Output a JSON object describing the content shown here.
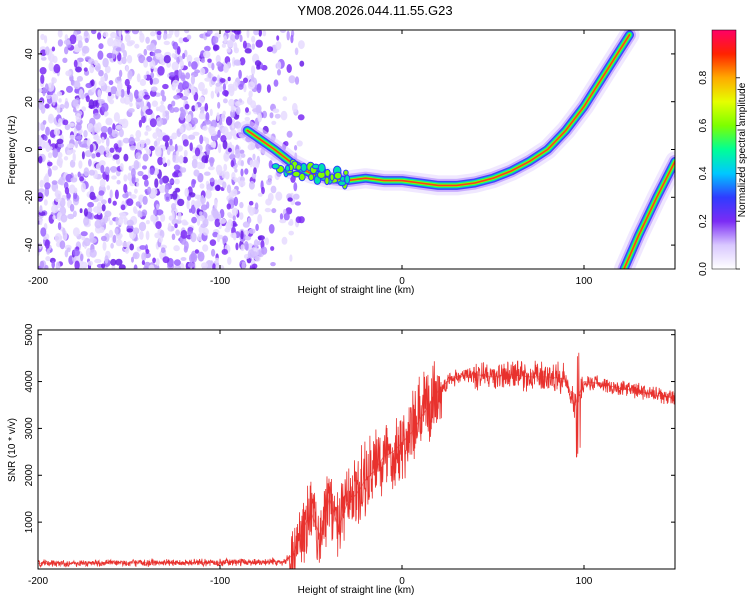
{
  "figure": {
    "title": "YM08.2026.044.11.55.G23"
  },
  "chart_data": [
    {
      "type": "heatmap",
      "title": "YM08.2026.044.11.55.G23",
      "xlabel": "Height of straight line (km)",
      "ylabel": "Frequency (Hz)",
      "xlim": [
        -200,
        150
      ],
      "ylim": [
        -50,
        50
      ],
      "x_ticks": [
        -200,
        -100,
        0,
        100
      ],
      "y_ticks": [
        -40,
        -20,
        0,
        20,
        40
      ],
      "noise_region_x": [
        -200,
        -65
      ],
      "main_track": {
        "x": [
          -85,
          -70,
          -60,
          -50,
          -40,
          -30,
          -20,
          -10,
          0,
          10,
          20,
          30,
          40,
          50,
          60,
          70,
          80,
          90,
          100,
          110,
          120,
          125
        ],
        "y": [
          8,
          0,
          -6,
          -10,
          -12,
          -13,
          -12,
          -13,
          -13,
          -14,
          -15,
          -15,
          -14,
          -12,
          -9,
          -5,
          0,
          8,
          18,
          30,
          42,
          48
        ]
      },
      "second_track": {
        "x": [
          122,
          130,
          140,
          150
        ],
        "y": [
          -50,
          -36,
          -20,
          -5
        ]
      },
      "colorbar": {
        "label": "Normalized spectral amplitude",
        "range": [
          0,
          1
        ],
        "ticks": [
          "0.0",
          "0.2",
          "0.4",
          "0.6",
          "0.8"
        ],
        "tick_values": [
          0,
          0.2,
          0.4,
          0.6,
          0.8
        ],
        "colors": [
          "#ffffff",
          "#d9c8ff",
          "#7b2cf5",
          "#2f3cff",
          "#00c8ff",
          "#00ff96",
          "#7dff00",
          "#e6ff00",
          "#ffaa00",
          "#ff2200",
          "#ff0066"
        ]
      }
    },
    {
      "type": "line",
      "xlabel": "Height of straight line (km)",
      "ylabel": "SNR (10 * v/v)",
      "xlim": [
        -200,
        150
      ],
      "ylim": [
        0,
        5100
      ],
      "x_ticks": [
        -200,
        -100,
        0,
        100
      ],
      "y_ticks": [
        1000,
        2000,
        3000,
        4000,
        5000
      ],
      "line_color": "#e8312d",
      "series": [
        {
          "name": "SNR",
          "x": [
            -200,
            -150,
            -100,
            -80,
            -65,
            -60,
            -55,
            -50,
            -45,
            -40,
            -35,
            -30,
            -25,
            -20,
            -15,
            -10,
            -5,
            0,
            5,
            10,
            15,
            20,
            25,
            30,
            40,
            50,
            60,
            70,
            80,
            90,
            95,
            100,
            110,
            120,
            130,
            140,
            150
          ],
          "y": [
            120,
            130,
            140,
            150,
            160,
            300,
            800,
            1200,
            700,
            1500,
            900,
            1400,
            1600,
            1900,
            2100,
            2400,
            2500,
            2700,
            2900,
            3200,
            3500,
            3800,
            4000,
            4100,
            4150,
            4100,
            4150,
            4100,
            4100,
            4050,
            3500,
            4000,
            3950,
            3850,
            3800,
            3700,
            3650
          ]
        }
      ]
    }
  ]
}
